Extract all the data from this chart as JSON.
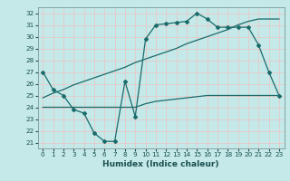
{
  "xlabel": "Humidex (Indice chaleur)",
  "background_color": "#c5e8e8",
  "grid_color": "#e8c8c8",
  "line_color": "#1a6b6b",
  "ylim": [
    20.5,
    32.5
  ],
  "xlim": [
    -0.5,
    23.5
  ],
  "yticks": [
    21,
    22,
    23,
    24,
    25,
    26,
    27,
    28,
    29,
    30,
    31,
    32
  ],
  "xticks": [
    0,
    1,
    2,
    3,
    4,
    5,
    6,
    7,
    8,
    9,
    10,
    11,
    12,
    13,
    14,
    15,
    16,
    17,
    18,
    19,
    20,
    21,
    22,
    23
  ],
  "series1_x": [
    0,
    1,
    2,
    3,
    4,
    5,
    6,
    7,
    8,
    9,
    10,
    11,
    12,
    13,
    14,
    15,
    16,
    17,
    18,
    19,
    20,
    21,
    22,
    23
  ],
  "series1_y": [
    27.0,
    25.5,
    25.0,
    23.8,
    23.5,
    21.8,
    21.1,
    21.1,
    26.2,
    23.2,
    29.8,
    31.0,
    31.1,
    31.2,
    31.3,
    32.0,
    31.5,
    30.8,
    30.8,
    30.8,
    30.8,
    29.3,
    27.0,
    25.0
  ],
  "series2_x": [
    0,
    1,
    2,
    3,
    4,
    5,
    6,
    7,
    8,
    9,
    10,
    11,
    12,
    13,
    14,
    15,
    16,
    17,
    18,
    19,
    20,
    21,
    22,
    23
  ],
  "series2_y": [
    24.0,
    24.0,
    24.0,
    24.0,
    24.0,
    24.0,
    24.0,
    24.0,
    24.0,
    24.0,
    24.3,
    24.5,
    24.6,
    24.7,
    24.8,
    24.9,
    25.0,
    25.0,
    25.0,
    25.0,
    25.0,
    25.0,
    25.0,
    25.0
  ],
  "series3_x": [
    0,
    1,
    2,
    3,
    4,
    5,
    6,
    7,
    8,
    9,
    10,
    11,
    12,
    13,
    14,
    15,
    16,
    17,
    18,
    19,
    20,
    21,
    22,
    23
  ],
  "series3_y": [
    24.8,
    25.2,
    25.5,
    25.9,
    26.2,
    26.5,
    26.8,
    27.1,
    27.4,
    27.8,
    28.1,
    28.4,
    28.7,
    29.0,
    29.4,
    29.7,
    30.0,
    30.3,
    30.6,
    31.0,
    31.3,
    31.5,
    31.5,
    31.5
  ]
}
